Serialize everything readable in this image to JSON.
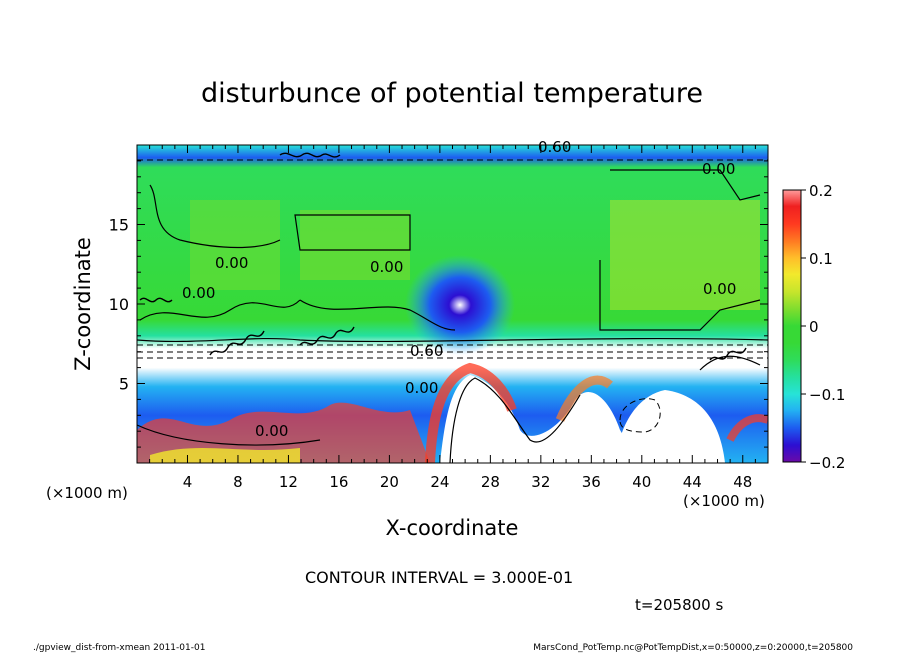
{
  "chart_data": {
    "type": "heatmap",
    "title": "disturbunce of potential temperature",
    "xlabel": "X-coordinate",
    "ylabel": "Z-coordinate",
    "x_unit_label": "(×1000 m)",
    "z_unit_label": "(×1000 m)",
    "xlim": [
      0,
      50
    ],
    "ylim": [
      0,
      20
    ],
    "x_ticks": [
      4,
      8,
      12,
      16,
      20,
      24,
      28,
      32,
      36,
      40,
      44,
      48
    ],
    "y_ticks": [
      5,
      10,
      15
    ],
    "colorbar": {
      "range": [
        -0.2,
        0.2
      ],
      "ticks": [
        "0.2",
        "0.1",
        "0",
        "−0.1",
        "−0.2"
      ],
      "colors": [
        "#6a0aa8",
        "#2c0fd2",
        "#1d5cf0",
        "#23b2f2",
        "#27e3d7",
        "#25e0a0",
        "#2fdc5a",
        "#37d936",
        "#7ddd2e",
        "#c6e52c",
        "#f2e92c",
        "#ffbe2a",
        "#ff7c22",
        "#ff3a20",
        "#ef2020",
        "#ff9c9c"
      ]
    },
    "contour_labels": [
      "0.60",
      "0.00",
      "0.00",
      "0.00",
      "0.00",
      "0.00",
      "0.60",
      "0.00",
      "0.00"
    ],
    "annotations": {
      "contour_interval": "CONTOUR INTERVAL = 3.000E-01",
      "time": "t=205800 s",
      "footer_left": "./gpview_dist-from-xmean  2011-01-01",
      "footer_right": "MarsCond_PotTemp.nc@PotTempDist,x=0:50000,z=0:20000,t=205800"
    }
  }
}
